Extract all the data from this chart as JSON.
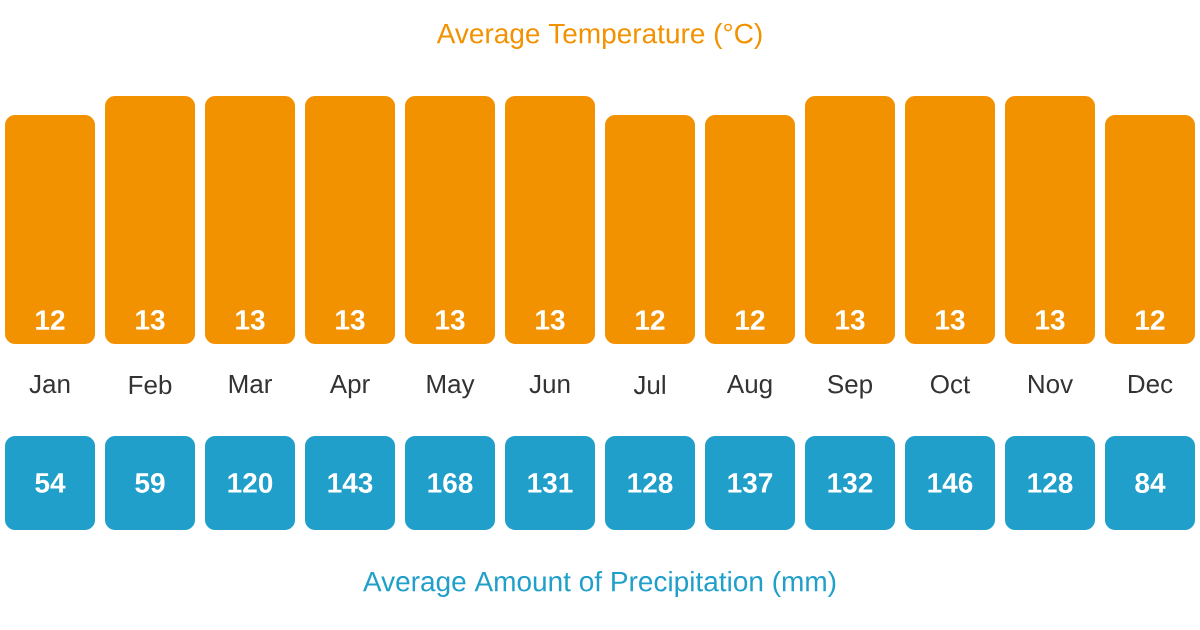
{
  "chart_data": [
    {
      "type": "bar",
      "title": "Average Temperature (°C)",
      "categories": [
        "Jan",
        "Feb",
        "Mar",
        "Apr",
        "May",
        "Jun",
        "Jul",
        "Aug",
        "Sep",
        "Oct",
        "Nov",
        "Dec"
      ],
      "values": [
        12,
        13,
        13,
        13,
        13,
        13,
        12,
        12,
        13,
        13,
        13,
        12
      ],
      "color": "#f39200",
      "data_labels": true
    },
    {
      "type": "other",
      "title": "Average Amount of Precipitation (mm)",
      "values": [
        54,
        59,
        120,
        143,
        168,
        131,
        128,
        137,
        132,
        146,
        128,
        84
      ],
      "color": "#1f9fca",
      "data_labels": true
    }
  ]
}
